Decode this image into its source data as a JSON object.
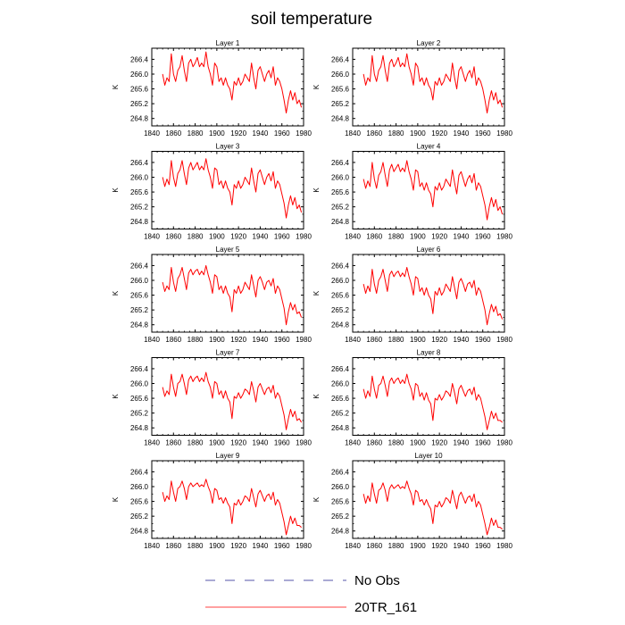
{
  "chart_data": {
    "type": "line",
    "title": "soil temperature",
    "xlabel": "",
    "ylabel": "K",
    "xlim": [
      1840,
      1980
    ],
    "ylim": [
      264.6,
      266.7
    ],
    "xticks": [
      1840,
      1860,
      1880,
      1900,
      1920,
      1940,
      1960,
      1980
    ],
    "xtick_labels": [
      "1840",
      "1860",
      "1880",
      "1900",
      "1920",
      "1940",
      "1960",
      "1980"
    ],
    "yticks": [
      264.8,
      265.2,
      265.6,
      266.0,
      266.4
    ],
    "ytick_labels": [
      "264.8",
      "265.2",
      "265.6",
      "266.0",
      "266.4"
    ],
    "legend": [
      {
        "name": "No Obs",
        "color": "#5555aa",
        "style": "dashed"
      },
      {
        "name": "20TR_161",
        "color": "#ff0000",
        "style": "solid"
      }
    ],
    "x": [
      1850,
      1852,
      1854,
      1856,
      1858,
      1860,
      1862,
      1864,
      1866,
      1868,
      1870,
      1872,
      1874,
      1876,
      1878,
      1880,
      1882,
      1884,
      1886,
      1888,
      1890,
      1892,
      1894,
      1896,
      1898,
      1900,
      1902,
      1904,
      1906,
      1908,
      1910,
      1912,
      1914,
      1916,
      1918,
      1920,
      1922,
      1924,
      1926,
      1928,
      1930,
      1932,
      1934,
      1936,
      1938,
      1940,
      1942,
      1944,
      1946,
      1948,
      1950,
      1952,
      1954,
      1956,
      1958,
      1960,
      1962,
      1964,
      1966,
      1968,
      1970,
      1972,
      1974,
      1976,
      1978
    ],
    "panels": [
      {
        "title": "Layer 1",
        "values": [
          266.0,
          265.7,
          265.9,
          265.8,
          266.55,
          266.0,
          265.8,
          266.1,
          266.2,
          266.5,
          266.1,
          265.8,
          266.3,
          266.4,
          266.2,
          266.3,
          266.45,
          266.2,
          266.3,
          266.2,
          266.6,
          266.2,
          266.0,
          265.7,
          266.3,
          266.2,
          265.8,
          265.9,
          265.7,
          265.9,
          265.7,
          265.6,
          265.3,
          265.8,
          265.7,
          265.9,
          265.7,
          265.8,
          266.0,
          265.9,
          265.8,
          266.3,
          265.9,
          265.6,
          266.1,
          266.2,
          266.0,
          265.8,
          266.0,
          266.1,
          265.9,
          266.2,
          265.7,
          265.9,
          265.8,
          265.6,
          265.3,
          264.95,
          265.3,
          265.55,
          265.3,
          265.5,
          265.2,
          265.3,
          265.1
        ]
      },
      {
        "title": "Layer 2",
        "values": [
          266.0,
          265.7,
          265.9,
          265.8,
          266.5,
          266.0,
          265.8,
          266.1,
          266.2,
          266.5,
          266.1,
          265.8,
          266.3,
          266.4,
          266.2,
          266.3,
          266.45,
          266.2,
          266.3,
          266.2,
          266.55,
          266.2,
          266.0,
          265.7,
          266.3,
          266.2,
          265.8,
          265.9,
          265.7,
          265.9,
          265.7,
          265.6,
          265.3,
          265.8,
          265.7,
          265.9,
          265.7,
          265.8,
          266.0,
          265.9,
          265.8,
          266.3,
          265.9,
          265.6,
          266.1,
          266.2,
          266.0,
          265.8,
          266.0,
          266.1,
          265.9,
          266.2,
          265.7,
          265.9,
          265.8,
          265.6,
          265.3,
          264.95,
          265.3,
          265.55,
          265.3,
          265.5,
          265.2,
          265.3,
          265.1
        ]
      },
      {
        "title": "Layer 3",
        "values": [
          266.0,
          265.75,
          265.95,
          265.8,
          266.45,
          266.0,
          265.75,
          266.1,
          266.2,
          266.45,
          266.1,
          265.8,
          266.25,
          266.4,
          266.2,
          266.3,
          266.4,
          266.2,
          266.3,
          266.2,
          266.5,
          266.2,
          266.0,
          265.7,
          266.25,
          266.2,
          265.8,
          265.9,
          265.7,
          265.9,
          265.7,
          265.6,
          265.25,
          265.8,
          265.7,
          265.9,
          265.7,
          265.8,
          266.0,
          265.9,
          265.8,
          266.25,
          265.9,
          265.6,
          266.1,
          266.2,
          266.0,
          265.8,
          266.0,
          266.1,
          265.9,
          266.15,
          265.7,
          265.9,
          265.8,
          265.55,
          265.3,
          264.9,
          265.25,
          265.5,
          265.25,
          265.45,
          265.15,
          265.25,
          265.05
        ]
      },
      {
        "title": "Layer 4",
        "values": [
          265.95,
          265.7,
          265.9,
          265.75,
          266.4,
          265.95,
          265.7,
          266.05,
          266.15,
          266.4,
          266.05,
          265.75,
          266.2,
          266.35,
          266.15,
          266.25,
          266.35,
          266.15,
          266.25,
          266.15,
          266.45,
          266.15,
          265.95,
          265.65,
          266.2,
          266.15,
          265.75,
          265.85,
          265.65,
          265.85,
          265.65,
          265.55,
          265.2,
          265.75,
          265.65,
          265.85,
          265.65,
          265.75,
          265.95,
          265.85,
          265.75,
          266.2,
          265.85,
          265.55,
          266.05,
          266.15,
          265.95,
          265.75,
          265.95,
          266.05,
          265.85,
          266.1,
          265.65,
          265.85,
          265.75,
          265.5,
          265.25,
          264.85,
          265.2,
          265.45,
          265.2,
          265.4,
          265.1,
          265.2,
          265.0
        ]
      },
      {
        "title": "Layer 5",
        "values": [
          265.95,
          265.7,
          265.85,
          265.75,
          266.35,
          265.95,
          265.7,
          266.05,
          266.15,
          266.35,
          266.05,
          265.75,
          266.2,
          266.3,
          266.15,
          266.25,
          266.3,
          266.15,
          266.25,
          266.15,
          266.4,
          266.15,
          265.95,
          265.65,
          266.15,
          266.1,
          265.75,
          265.85,
          265.65,
          265.85,
          265.65,
          265.55,
          265.15,
          265.75,
          265.65,
          265.85,
          265.65,
          265.75,
          265.95,
          265.85,
          265.75,
          266.15,
          265.85,
          265.55,
          266.0,
          266.1,
          265.95,
          265.75,
          265.95,
          266.0,
          265.85,
          266.05,
          265.65,
          265.85,
          265.75,
          265.5,
          265.25,
          264.8,
          265.15,
          265.4,
          265.2,
          265.35,
          265.1,
          265.15,
          265.0
        ]
      },
      {
        "title": "Layer 6",
        "values": [
          265.9,
          265.65,
          265.85,
          265.7,
          266.3,
          265.9,
          265.65,
          266.0,
          266.1,
          266.3,
          266.0,
          265.7,
          266.15,
          266.25,
          266.1,
          266.2,
          266.25,
          266.1,
          266.2,
          266.1,
          266.35,
          266.1,
          265.9,
          265.6,
          266.1,
          266.05,
          265.7,
          265.8,
          265.6,
          265.8,
          265.6,
          265.5,
          265.1,
          265.7,
          265.6,
          265.8,
          265.6,
          265.7,
          265.9,
          265.8,
          265.7,
          266.1,
          265.8,
          265.5,
          265.95,
          266.05,
          265.9,
          265.7,
          265.9,
          265.95,
          265.8,
          266.0,
          265.6,
          265.8,
          265.7,
          265.45,
          265.2,
          264.8,
          265.1,
          265.35,
          265.15,
          265.3,
          265.05,
          265.1,
          264.95
        ]
      },
      {
        "title": "Layer 7",
        "values": [
          265.9,
          265.65,
          265.8,
          265.7,
          266.25,
          265.9,
          265.65,
          266.0,
          266.05,
          266.25,
          266.0,
          265.7,
          266.1,
          266.2,
          266.05,
          266.15,
          266.2,
          266.05,
          266.15,
          266.05,
          266.3,
          266.05,
          265.9,
          265.6,
          266.05,
          266.0,
          265.7,
          265.8,
          265.6,
          265.8,
          265.6,
          265.5,
          265.05,
          265.65,
          265.6,
          265.75,
          265.6,
          265.7,
          265.85,
          265.8,
          265.7,
          266.05,
          265.8,
          265.5,
          265.9,
          266.0,
          265.85,
          265.7,
          265.85,
          265.9,
          265.75,
          265.95,
          265.6,
          265.75,
          265.65,
          265.4,
          265.15,
          264.75,
          265.05,
          265.3,
          265.1,
          265.25,
          265.0,
          265.05,
          264.95
        ]
      },
      {
        "title": "Layer 8",
        "values": [
          265.85,
          265.6,
          265.8,
          265.65,
          266.2,
          265.85,
          265.6,
          265.95,
          266.0,
          266.2,
          265.95,
          265.65,
          266.05,
          266.15,
          266.0,
          266.1,
          266.15,
          266.0,
          266.1,
          266.0,
          266.25,
          266.0,
          265.85,
          265.55,
          266.0,
          265.95,
          265.65,
          265.75,
          265.55,
          265.75,
          265.55,
          265.45,
          265.0,
          265.6,
          265.55,
          265.7,
          265.55,
          265.65,
          265.8,
          265.75,
          265.65,
          266.0,
          265.75,
          265.45,
          265.85,
          265.95,
          265.8,
          265.65,
          265.8,
          265.85,
          265.7,
          265.9,
          265.55,
          265.7,
          265.6,
          265.35,
          265.1,
          264.75,
          265.0,
          265.25,
          265.05,
          265.2,
          265.0,
          265.0,
          264.95
        ]
      },
      {
        "title": "Layer 9",
        "values": [
          265.85,
          265.6,
          265.75,
          265.65,
          266.15,
          265.85,
          265.6,
          265.95,
          266.0,
          266.15,
          265.95,
          265.65,
          266.0,
          266.1,
          266.0,
          266.05,
          266.1,
          266.0,
          266.05,
          266.0,
          266.2,
          266.0,
          265.85,
          265.55,
          265.95,
          265.9,
          265.65,
          265.7,
          265.55,
          265.7,
          265.55,
          265.45,
          265.0,
          265.55,
          265.5,
          265.65,
          265.5,
          265.6,
          265.75,
          265.7,
          265.6,
          265.95,
          265.7,
          265.45,
          265.8,
          265.9,
          265.75,
          265.6,
          265.75,
          265.8,
          265.65,
          265.85,
          265.5,
          265.65,
          265.55,
          265.3,
          265.05,
          264.7,
          264.95,
          265.2,
          265.0,
          265.15,
          264.95,
          264.95,
          264.9
        ]
      },
      {
        "title": "Layer 10",
        "values": [
          265.8,
          265.55,
          265.75,
          265.6,
          266.1,
          265.8,
          265.55,
          265.9,
          265.95,
          266.1,
          265.9,
          265.6,
          265.95,
          266.05,
          265.95,
          266.0,
          266.05,
          265.95,
          266.0,
          265.95,
          266.15,
          265.95,
          265.8,
          265.5,
          265.9,
          265.85,
          265.6,
          265.65,
          265.5,
          265.65,
          265.5,
          265.4,
          265.0,
          265.5,
          265.45,
          265.6,
          265.45,
          265.55,
          265.7,
          265.65,
          265.55,
          265.9,
          265.65,
          265.4,
          265.75,
          265.85,
          265.7,
          265.55,
          265.7,
          265.75,
          265.6,
          265.8,
          265.45,
          265.6,
          265.5,
          265.25,
          265.0,
          264.7,
          264.9,
          265.15,
          264.95,
          265.1,
          264.9,
          264.9,
          264.85
        ]
      }
    ]
  }
}
